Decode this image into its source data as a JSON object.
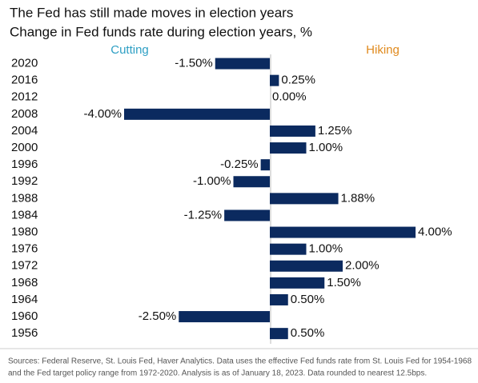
{
  "chart_data": {
    "type": "hbar",
    "title": "The Fed has still made moves in election years",
    "subtitle": "Change in Fed funds rate during election years, %",
    "annotations": [
      {
        "text": "Cutting",
        "color": "#2e9fc4"
      },
      {
        "text": "Hiking",
        "color": "#e08a1e"
      }
    ],
    "categories": [
      "2020",
      "2016",
      "2012",
      "2008",
      "2004",
      "2000",
      "1996",
      "1992",
      "1988",
      "1984",
      "1980",
      "1976",
      "1972",
      "1968",
      "1964",
      "1960",
      "1956"
    ],
    "values": [
      -1.5,
      0.25,
      0,
      -4,
      1.25,
      1,
      -0.25,
      -1,
      1.88,
      -1.25,
      4,
      1,
      2,
      1.5,
      0.5,
      -2.5,
      0.5
    ],
    "value_labels": [
      "-1.50%",
      "0.25%",
      "0.00%",
      "-4.00%",
      "1.25%",
      "1.00%",
      "-0.25%",
      "-1.00%",
      "1.88%",
      "-1.25%",
      "4.00%",
      "1.00%",
      "2.00%",
      "1.50%",
      "0.50%",
      "-2.50%",
      "0.50%"
    ],
    "color": "#0b2a5f",
    "xlim": [
      -4,
      4
    ],
    "source": [
      "Sources: Federal Reserve, St. Louis Fed, Haver Analytics. Data uses the effective Fed funds rate from St. Louis Fed for 1954-1968",
      "and the Fed target policy range from 1972-2020. Analysis is as of January 18, 2023. Data rounded to nearest 12.5bps."
    ]
  }
}
